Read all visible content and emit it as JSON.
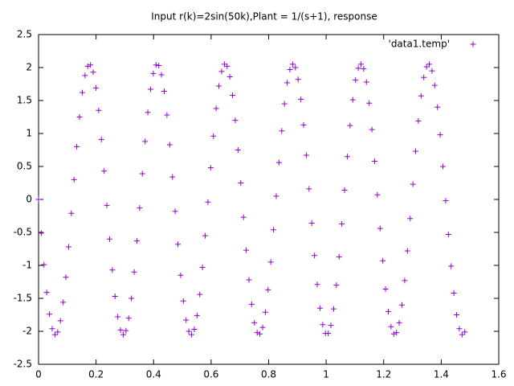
{
  "chart_data": {
    "type": "scatter",
    "title": "Input r(k)=2sin(50k),Plant = 1/(s+1), response",
    "series": [
      {
        "name": "'data1.temp'",
        "color": "#9400d3",
        "marker": "+",
        "x": [
          0,
          0.0095,
          0.019,
          0.0285,
          0.038,
          0.0475,
          0.057,
          0.0665,
          0.076,
          0.0855,
          0.095,
          0.1045,
          0.114,
          0.1235,
          0.133,
          0.1425,
          0.152,
          0.1615,
          0.171,
          0.1805,
          0.19,
          0.1995,
          0.209,
          0.2185,
          0.228,
          0.2375,
          0.247,
          0.2565,
          0.266,
          0.2755,
          0.285,
          0.2945,
          0.304,
          0.3135,
          0.323,
          0.3325,
          0.342,
          0.3515,
          0.361,
          0.3705,
          0.38,
          0.3895,
          0.399,
          0.4085,
          0.418,
          0.4275,
          0.437,
          0.4465,
          0.456,
          0.4655,
          0.475,
          0.4845,
          0.494,
          0.5035,
          0.513,
          0.5225,
          0.532,
          0.5415,
          0.551,
          0.5605,
          0.57,
          0.5795,
          0.589,
          0.5985,
          0.608,
          0.6175,
          0.627,
          0.6365,
          0.646,
          0.6555,
          0.665,
          0.6745,
          0.684,
          0.6935,
          0.703,
          0.7125,
          0.722,
          0.7315,
          0.741,
          0.7505,
          0.76,
          0.7695,
          0.779,
          0.7885,
          0.798,
          0.8075,
          0.817,
          0.8265,
          0.836,
          0.8455,
          0.855,
          0.8645,
          0.874,
          0.8835,
          0.893,
          0.9025,
          0.912,
          0.9215,
          0.931,
          0.9405,
          0.95,
          0.9595,
          0.969,
          0.9785,
          0.988,
          0.9975,
          1.007,
          1.0165,
          1.026,
          1.0355,
          1.045,
          1.0545,
          1.064,
          1.0735,
          1.083,
          1.0925,
          1.102,
          1.1115,
          1.121,
          1.1305,
          1.14,
          1.1495,
          1.159,
          1.1685,
          1.178,
          1.1875,
          1.197,
          1.2065,
          1.216,
          1.2255,
          1.235,
          1.2445,
          1.254,
          1.2635,
          1.273,
          1.2825,
          1.292,
          1.3015,
          1.311,
          1.3205,
          1.33,
          1.3395,
          1.349,
          1.3585,
          1.368,
          1.3775,
          1.387,
          1.3965,
          1.406,
          1.4155,
          1.425,
          1.4345,
          1.444,
          1.4535,
          1.463,
          1.4725,
          1.482
        ],
        "values": [
          0,
          -0.51,
          -0.99,
          -1.41,
          -1.74,
          -1.96,
          -2.05,
          -2.01,
          -1.84,
          -1.56,
          -1.18,
          -0.72,
          -0.21,
          0.3,
          0.8,
          1.25,
          1.62,
          1.88,
          2.02,
          2.04,
          1.93,
          1.69,
          1.35,
          0.91,
          0.43,
          -0.09,
          -0.6,
          -1.07,
          -1.47,
          -1.78,
          -1.98,
          -2.05,
          -1.99,
          -1.8,
          -1.5,
          -1.1,
          -0.63,
          -0.13,
          0.39,
          0.88,
          1.32,
          1.67,
          1.91,
          2.04,
          2.03,
          1.89,
          1.64,
          1.28,
          0.83,
          0.34,
          -0.18,
          -0.68,
          -1.15,
          -1.54,
          -1.83,
          -2.0,
          -2.05,
          -1.97,
          -1.76,
          -1.44,
          -1.03,
          -0.55,
          -0.04,
          0.48,
          0.96,
          1.38,
          1.72,
          1.94,
          2.05,
          2.02,
          1.86,
          1.58,
          1.2,
          0.75,
          0.25,
          -0.27,
          -0.77,
          -1.22,
          -1.59,
          -1.87,
          -2.02,
          -2.04,
          -1.94,
          -1.71,
          -1.37,
          -0.95,
          -0.46,
          0.05,
          0.56,
          1.04,
          1.45,
          1.77,
          1.97,
          2.05,
          2.0,
          1.82,
          1.52,
          1.13,
          0.67,
          0.16,
          -0.36,
          -0.85,
          -1.29,
          -1.65,
          -1.9,
          -2.03,
          -2.03,
          -1.91,
          -1.66,
          -1.3,
          -0.87,
          -0.37,
          0.14,
          0.65,
          1.12,
          1.51,
          1.81,
          1.99,
          2.05,
          1.98,
          1.78,
          1.46,
          1.06,
          0.58,
          0.07,
          -0.44,
          -0.93,
          -1.36,
          -1.7,
          -1.93,
          -2.04,
          -2.02,
          -1.87,
          -1.6,
          -1.23,
          -0.78,
          -0.29,
          0.23,
          0.73,
          1.19,
          1.57,
          1.85,
          2.01,
          2.05,
          1.95,
          1.73,
          1.4,
          0.98,
          0.5,
          -0.02,
          -0.53,
          -1.01,
          -1.42,
          -1.75,
          -1.96,
          -2.05,
          -2.01
        ]
      }
    ],
    "xlim": [
      0,
      1.6
    ],
    "xticks": [
      0,
      0.2,
      0.4,
      0.6,
      0.8,
      1,
      1.2,
      1.4,
      1.6
    ],
    "ylim": [
      -2.5,
      2.5
    ],
    "yticks": [
      -2.5,
      -2,
      -1.5,
      -1,
      -0.5,
      0,
      0.5,
      1,
      1.5,
      2,
      2.5
    ],
    "grid": false,
    "legend": "top-right"
  }
}
